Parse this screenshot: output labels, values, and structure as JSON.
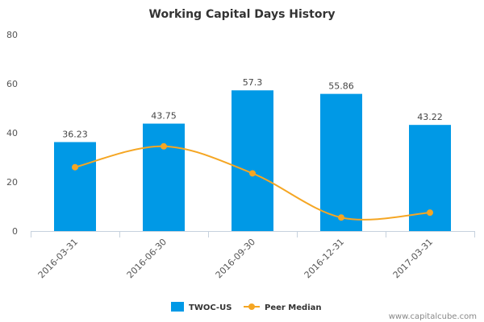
{
  "chart_data": {
    "type": "bar",
    "title": "Working Capital Days History",
    "xlabel": "",
    "ylabel": "",
    "categories": [
      "2016-03-31",
      "2016-06-30",
      "2016-09-30",
      "2016-12-31",
      "2017-03-31"
    ],
    "series": [
      {
        "name": "TWOC-US",
        "kind": "bar",
        "color": "#0099e6",
        "values": [
          36.23,
          43.75,
          57.3,
          55.86,
          43.22
        ],
        "labels": [
          "36.23",
          "43.75",
          "57.3",
          "55.86",
          "43.22"
        ]
      },
      {
        "name": "Peer Median",
        "kind": "line",
        "color": "#f5a623",
        "values": [
          26,
          34.5,
          23.5,
          5.5,
          7.5
        ]
      }
    ],
    "yticks": [
      0,
      20,
      40,
      60,
      80
    ],
    "ylim": [
      0,
      80
    ],
    "grid": false,
    "legend": "bottom-center"
  },
  "credit": "www.capitalcube.com"
}
